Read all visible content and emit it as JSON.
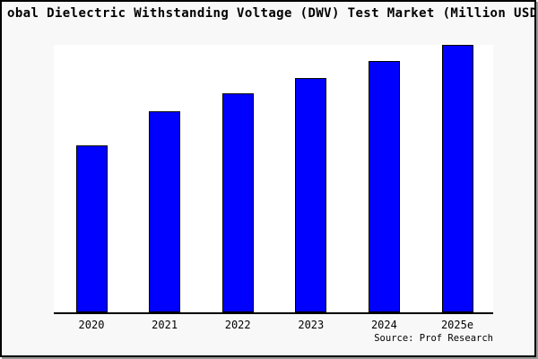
{
  "title": "obal Dielectric Withstanding Voltage (DWV) Test Market (Million USD",
  "footer": {
    "source": "Source: Prof Research"
  },
  "colors": {
    "bar_fill": "#0000ff",
    "bar_edge": "#000000",
    "figure_bg": "#f8f8f8",
    "plot_bg": "#ffffff",
    "axis": "#000000"
  },
  "chart_data": {
    "type": "bar",
    "title": "obal Dielectric Withstanding Voltage (DWV) Test Market (Million USD",
    "categories": [
      "2020",
      "2021",
      "2022",
      "2023",
      "2024",
      "2025e"
    ],
    "values": [
      62.5,
      75,
      82,
      87.5,
      94,
      100
    ],
    "xlabel": "",
    "ylabel": "",
    "ylim": [
      0,
      100
    ],
    "y_axis_visible": false,
    "grid": false,
    "legend": false,
    "note": "no y-axis scale shown; values estimated relative to tallest bar (2025e = 100)"
  }
}
